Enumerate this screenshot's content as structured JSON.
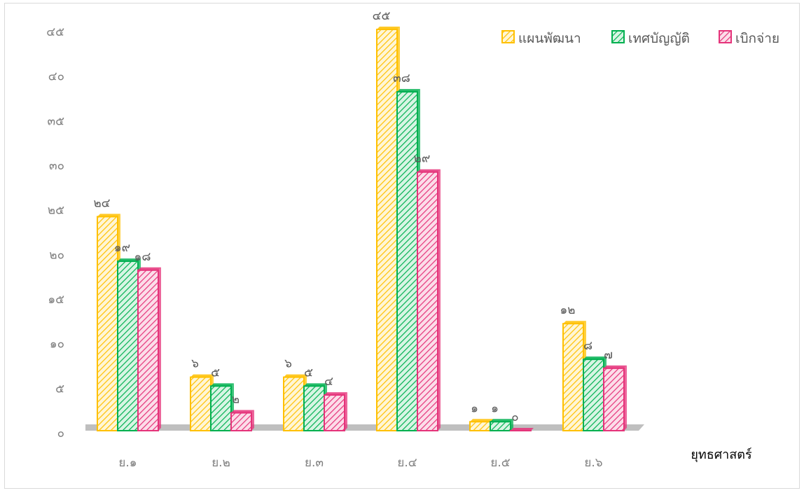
{
  "chart_data": {
    "type": "bar",
    "title": "",
    "xlabel": "ยุทธศาสตร์",
    "ylabel": "",
    "ylim": [
      0,
      45
    ],
    "yticks": [
      "๐",
      "๕",
      "๑๐",
      "๑๕",
      "๒๐",
      "๒๕",
      "๓๐",
      "๓๕",
      "๔๐",
      "๔๕"
    ],
    "categories": [
      "ย.๑",
      "ย.๒",
      "ย.๓",
      "ย.๔",
      "ย.๕",
      "ย.๖"
    ],
    "legend_position": "top-right",
    "grid": false,
    "series": [
      {
        "name": "แผนพัฒนา",
        "values": [
          24,
          6,
          6,
          45,
          1,
          12
        ],
        "labels": [
          "๒๔",
          "๖",
          "๖",
          "๔๕",
          "๑",
          "๑๒"
        ],
        "color": "#FFC000"
      },
      {
        "name": "เทศบัญญัติ",
        "values": [
          19,
          5,
          5,
          38,
          1,
          8
        ],
        "labels": [
          "๑๙",
          "๕",
          "๕",
          "๓๘",
          "๑",
          "๘"
        ],
        "color": "#00B050"
      },
      {
        "name": "เบิกจ่าย",
        "values": [
          18,
          2,
          4,
          29,
          0,
          7
        ],
        "labels": [
          "๑๘",
          "๒",
          "๔",
          "๒๙",
          "๐",
          "๗"
        ],
        "color": "#E5337A"
      }
    ]
  }
}
